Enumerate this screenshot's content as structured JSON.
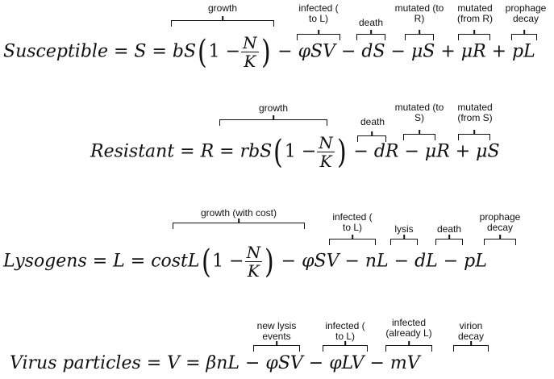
{
  "eq1": {
    "lhs": "Susceptible = S = bS",
    "one_minus": "1 −",
    "num": "N",
    "den": "K",
    "rest": " − φSV − dS − μS + μR + pL",
    "ann": [
      "growth",
      "infected ( to L)",
      "death",
      "mutated (to R)",
      "mutated (from R)",
      "prophage decay"
    ]
  },
  "eq2": {
    "lhs": "Resistant = R = rbS",
    "one_minus": "1 −",
    "num": "N",
    "den": "K",
    "rest": " − dR − μR + μS",
    "ann": [
      "growth",
      "death",
      "mutated (to S)",
      "mutated (from S)"
    ]
  },
  "eq3": {
    "lhs": "Lysogens = L = costL",
    "one_minus": "1 −",
    "num": "N",
    "den": "K",
    "rest": " − φSV − nL − dL − pL",
    "ann": [
      "growth (with cost)",
      "infected ( to L)",
      "lysis",
      "death",
      "prophage decay"
    ]
  },
  "eq4": {
    "lhs": "Virus particles = V = βnL − φSV − φLV − mV",
    "ann": [
      "new lysis events",
      "infected ( to L)",
      "infected (already L)",
      "virion decay"
    ]
  }
}
